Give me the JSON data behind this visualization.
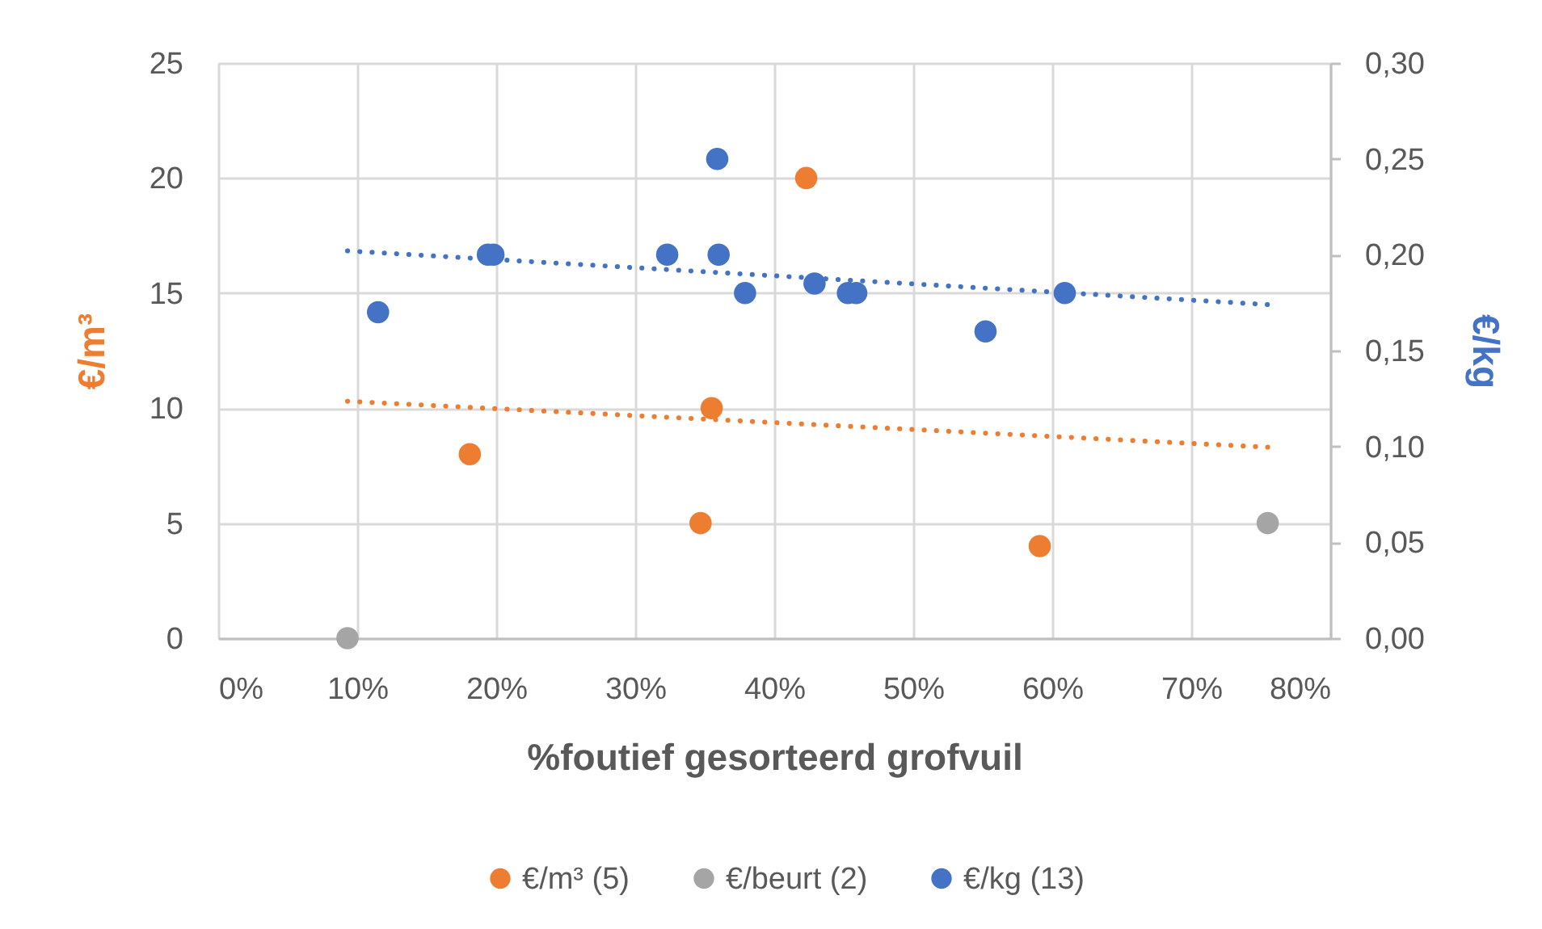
{
  "chart_data": {
    "type": "scatter",
    "xlabel": "%foutief gesorteerd grofvuil",
    "ylabel": "€/m³",
    "y2label": "€/kg",
    "xlim": [
      0,
      80
    ],
    "xticks": [
      {
        "value": 0,
        "label": "0%"
      },
      {
        "value": 10,
        "label": "10%"
      },
      {
        "value": 20,
        "label": "20%"
      },
      {
        "value": 30,
        "label": "30%"
      },
      {
        "value": 40,
        "label": "40%"
      },
      {
        "value": 50,
        "label": "50%"
      },
      {
        "value": 60,
        "label": "60%"
      },
      {
        "value": 70,
        "label": "70%"
      },
      {
        "value": 80,
        "label": "80%"
      }
    ],
    "ylim": [
      0,
      25
    ],
    "yticks": [
      0,
      5,
      10,
      15,
      20,
      25
    ],
    "y2lim": [
      0,
      0.3
    ],
    "y2ticks": [
      {
        "value": 0,
        "label": "0,00"
      },
      {
        "value": 0.05,
        "label": "0,05"
      },
      {
        "value": 0.1,
        "label": "0,10"
      },
      {
        "value": 0.15,
        "label": "0,15"
      },
      {
        "value": 0.2,
        "label": "0,20"
      },
      {
        "value": 0.25,
        "label": "0,25"
      },
      {
        "value": 0.3,
        "label": "0,30"
      }
    ],
    "grid": true,
    "legend": "bottom",
    "marker": "circle",
    "series": [
      {
        "name": "€/m³ (5)",
        "color": "#ed7d31",
        "x": [
          18.1,
          34.7,
          35.5,
          42.3,
          59.1
        ],
        "values": [
          8,
          5,
          10,
          20,
          4
        ]
      },
      {
        "name": "€/beurt (2)",
        "color": "#a5a5a5",
        "x": [
          9.3,
          75.5
        ],
        "values": [
          0,
          5
        ]
      },
      {
        "name": "€/kg (13)",
        "color": "#4472c4",
        "axis": "y2",
        "x": [
          11.5,
          19.4,
          19.8,
          32.3,
          35.9,
          36.0,
          37.9,
          42.9,
          45.3,
          45.9,
          55.2,
          60.9
        ],
        "values": [
          0.17,
          0.2,
          0.2,
          0.2,
          0.25,
          0.2,
          0.18,
          0.185,
          0.18,
          0.18,
          0.16,
          0.18
        ]
      },
      {
        "color": "#ed7d31",
        "type": "line",
        "marker": "none",
        "line_style": "dotted",
        "x": [
          9.3,
          75.5
        ],
        "values": [
          10.3,
          8.3
        ]
      },
      {
        "color": "#4472c4",
        "type": "line",
        "marker": "none",
        "line_style": "dotted",
        "axis": "y2",
        "x": [
          9.3,
          75.5
        ],
        "values": [
          0.202,
          0.174
        ]
      }
    ]
  }
}
